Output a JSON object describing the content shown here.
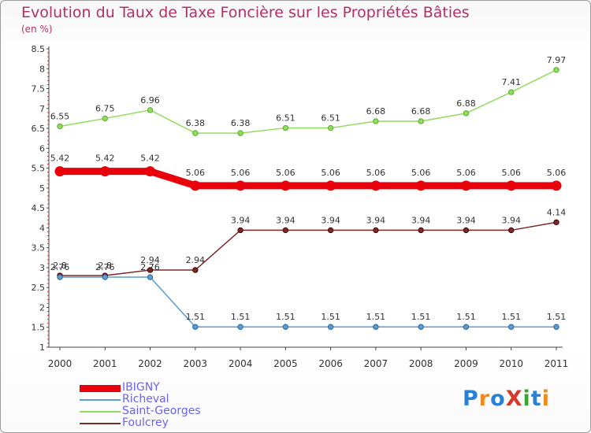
{
  "title": "Evolution du Taux de Taxe Foncière sur les Propriétés Bâties",
  "subtitle": "(en %)",
  "logo": {
    "text": "ProXiti",
    "colors": [
      "#2a7fd4",
      "#ef8a1f",
      "#2a7fd4",
      "#d63a2c",
      "#3aa435",
      "#2a7fd4",
      "#ef8a1f"
    ]
  },
  "chart_data": {
    "type": "line",
    "title": "Evolution du Taux de Taxe Foncière sur les Propriétés Bâties",
    "subtitle": "(en %)",
    "xlabel": "",
    "ylabel": "",
    "x": [
      "2000",
      "2001",
      "2002",
      "2003",
      "2004",
      "2005",
      "2006",
      "2007",
      "2008",
      "2009",
      "2010",
      "2011"
    ],
    "ylim": [
      1,
      8.5
    ],
    "yticks": [
      "1",
      "1.5",
      "2",
      "2.5",
      "3",
      "3.5",
      "4",
      "4.5",
      "5",
      "5.5",
      "6",
      "6.5",
      "7",
      "7.5",
      "8",
      "8.5"
    ],
    "grid": false,
    "legend_position": "bottom-left",
    "series": [
      {
        "name": "IBIGNY",
        "color": "#e8000b",
        "values": [
          5.42,
          5.42,
          5.42,
          5.06,
          5.06,
          5.06,
          5.06,
          5.06,
          5.06,
          5.06,
          5.06,
          5.06
        ],
        "labels": [
          "5.42",
          "5.42",
          "5.42",
          "5.06",
          "5.06",
          "5.06",
          "5.06",
          "5.06",
          "5.06",
          "5.06",
          "5.06",
          "5.06"
        ]
      },
      {
        "name": "Richeval",
        "color": "#5b9bd0",
        "values": [
          2.76,
          2.76,
          2.76,
          1.51,
          1.51,
          1.51,
          1.51,
          1.51,
          1.51,
          1.51,
          1.51,
          1.51
        ],
        "labels": [
          "2.76",
          "2.76",
          "2.76",
          "1.51",
          "1.51",
          "1.51",
          "1.51",
          "1.51",
          "1.51",
          "1.51",
          "1.51",
          "1.51"
        ]
      },
      {
        "name": "Saint-Georges",
        "color": "#8fdc5e",
        "values": [
          6.55,
          6.75,
          6.96,
          6.38,
          6.38,
          6.51,
          6.51,
          6.68,
          6.68,
          6.88,
          7.41,
          7.97
        ],
        "labels": [
          "6.55",
          "6.75",
          "6.96",
          "6.38",
          "6.38",
          "6.51",
          "6.51",
          "6.68",
          "6.68",
          "6.88",
          "7.41",
          "7.97"
        ]
      },
      {
        "name": "Foulcrey",
        "color": "#7b2a2a",
        "values": [
          2.8,
          2.8,
          2.94,
          2.94,
          3.94,
          3.94,
          3.94,
          3.94,
          3.94,
          3.94,
          3.94,
          4.14
        ],
        "labels": [
          "2.8",
          "2.8",
          "2.94",
          "2.94",
          "3.94",
          "3.94",
          "3.94",
          "3.94",
          "3.94",
          "3.94",
          "3.94",
          "4.14"
        ]
      }
    ]
  }
}
